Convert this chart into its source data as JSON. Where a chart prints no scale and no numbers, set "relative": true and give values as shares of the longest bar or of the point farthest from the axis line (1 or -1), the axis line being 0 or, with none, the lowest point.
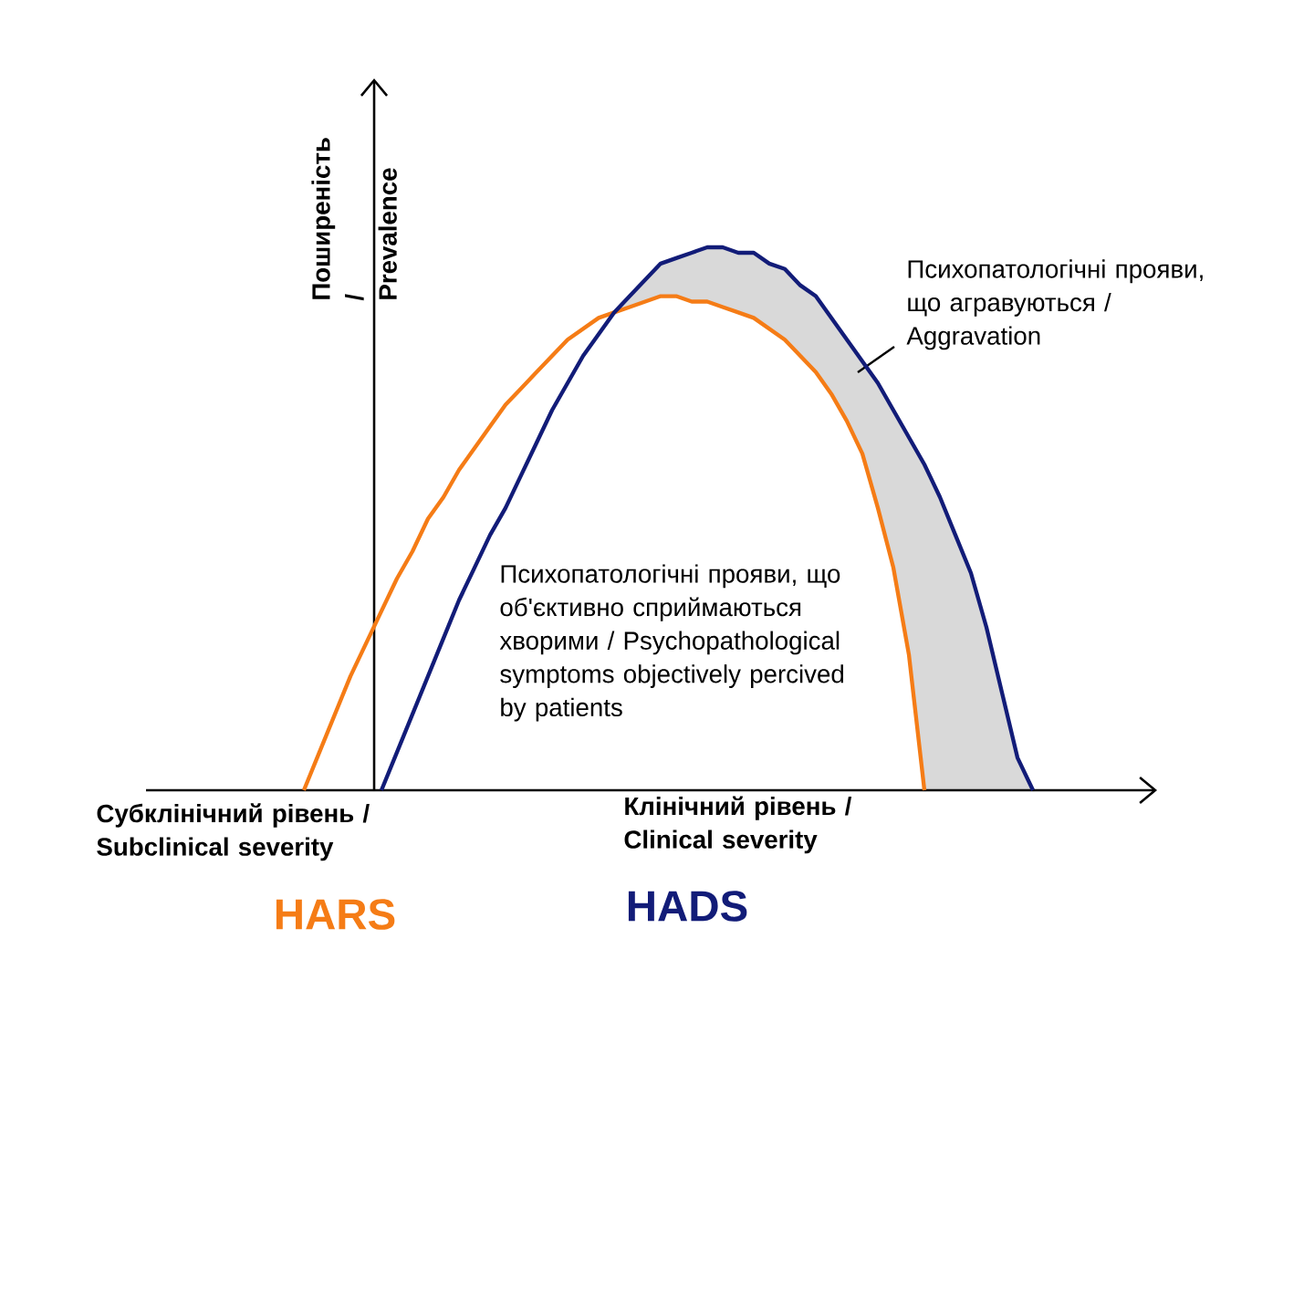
{
  "chart_data": {
    "type": "line",
    "relative": true,
    "ylabel": "Поширеність / Prevalence",
    "marker": "none",
    "categories": [
      null,
      null,
      null,
      null,
      null,
      null,
      null,
      null,
      null,
      null,
      null,
      null,
      null,
      null,
      null,
      null,
      null,
      null,
      null,
      null,
      null,
      null,
      null,
      null,
      null,
      null,
      null,
      null,
      null,
      null,
      null,
      null,
      null,
      null,
      null,
      null,
      null,
      null,
      null,
      null,
      null,
      null,
      null,
      null,
      null,
      null,
      null,
      null
    ],
    "series": [
      {
        "name": "HARS",
        "color": "#f57c16",
        "values": [
          0,
          0.07,
          0.14,
          0.21,
          0.27,
          0.33,
          0.39,
          0.44,
          0.5,
          0.54,
          0.59,
          0.63,
          0.67,
          0.71,
          0.74,
          0.77,
          0.8,
          0.83,
          0.85,
          0.87,
          0.88,
          0.89,
          0.9,
          0.91,
          0.91,
          0.9,
          0.9,
          0.89,
          0.88,
          0.87,
          0.85,
          0.83,
          0.8,
          0.77,
          0.73,
          0.68,
          0.62,
          0.52,
          0.41,
          0.25,
          0,
          null,
          null,
          null,
          null,
          null,
          null,
          null
        ]
      },
      {
        "name": "HADS",
        "color": "#121c78",
        "values": [
          null,
          null,
          null,
          null,
          null,
          0,
          0.07,
          0.14,
          0.21,
          0.28,
          0.35,
          0.41,
          0.47,
          0.52,
          0.58,
          0.64,
          0.7,
          0.75,
          0.8,
          0.84,
          0.88,
          0.91,
          0.94,
          0.97,
          0.98,
          0.99,
          1,
          1,
          0.99,
          0.99,
          0.97,
          0.96,
          0.93,
          0.91,
          0.87,
          0.83,
          0.79,
          0.75,
          0.7,
          0.65,
          0.6,
          0.54,
          0.47,
          0.4,
          0.3,
          0.18,
          0.06,
          0
        ]
      }
    ],
    "annotations": [
      "Субклінічний рівень / Subclinical severity",
      "Клінічний рівень / Clinical severity",
      "Психопатологічні прояви, що об'єктивно сприймаються хворими / Psychopathological symptoms objectively percived by patients",
      "Психопатологічні прояви, що агравуються / Aggravation"
    ]
  }
}
